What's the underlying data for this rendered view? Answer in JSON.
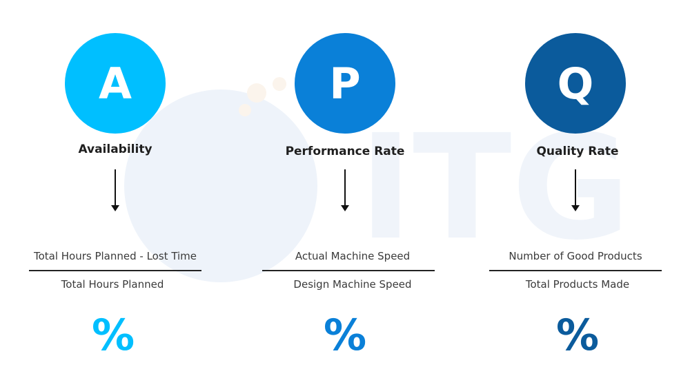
{
  "colors": {
    "availability": "#00bfff",
    "performance": "#0a80d8",
    "quality": "#0b5b9c",
    "watermark": "#eef3fa"
  },
  "watermark": {
    "text": "ITG"
  },
  "metrics": [
    {
      "letter": "A",
      "title": "Availability",
      "numerator": "Total Hours Planned - Lost Time",
      "denominator": "Total Hours Planned",
      "percent_symbol": "%"
    },
    {
      "letter": "P",
      "title": "Performance Rate",
      "numerator": "Actual Machine Speed",
      "denominator": "Design Machine Speed",
      "percent_symbol": "%"
    },
    {
      "letter": "Q",
      "title": "Quality Rate",
      "numerator": "Number of Good Products",
      "denominator": "Total Products Made",
      "percent_symbol": "%"
    }
  ]
}
